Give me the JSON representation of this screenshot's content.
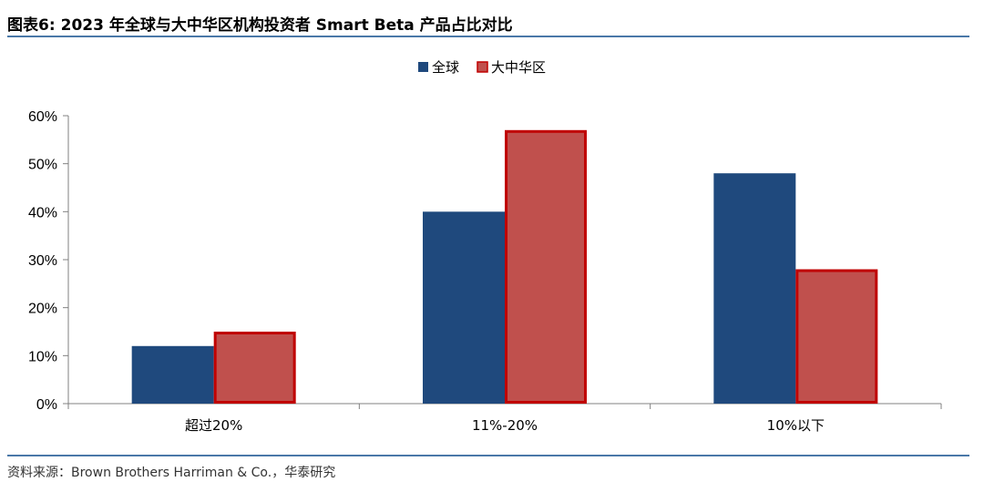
{
  "header": {
    "figure_label": "图表6:",
    "title": "2023 年全球与大中华区机构投资者 Smart Beta 产品占比对比"
  },
  "source": "资料来源：Brown Brothers Harriman & Co.，华泰研究",
  "colors": {
    "global": "#1f497d",
    "greater_china": "#c0504d",
    "greater_china_border": "#c00000",
    "rule": "#4a78a8"
  },
  "chart_data": {
    "type": "bar",
    "categories": [
      "超过20%",
      "11%-20%",
      "10%以下"
    ],
    "series": [
      {
        "name": "全球",
        "values": [
          12,
          40,
          48
        ]
      },
      {
        "name": "大中华区",
        "values": [
          15,
          57,
          28
        ]
      }
    ],
    "ylim": [
      0,
      60
    ],
    "yticks": [
      0,
      10,
      20,
      30,
      40,
      50,
      60
    ],
    "ytick_labels": [
      "0%",
      "10%",
      "20%",
      "30%",
      "40%",
      "50%",
      "60%"
    ],
    "legend_position": "top-center",
    "grid": false
  }
}
